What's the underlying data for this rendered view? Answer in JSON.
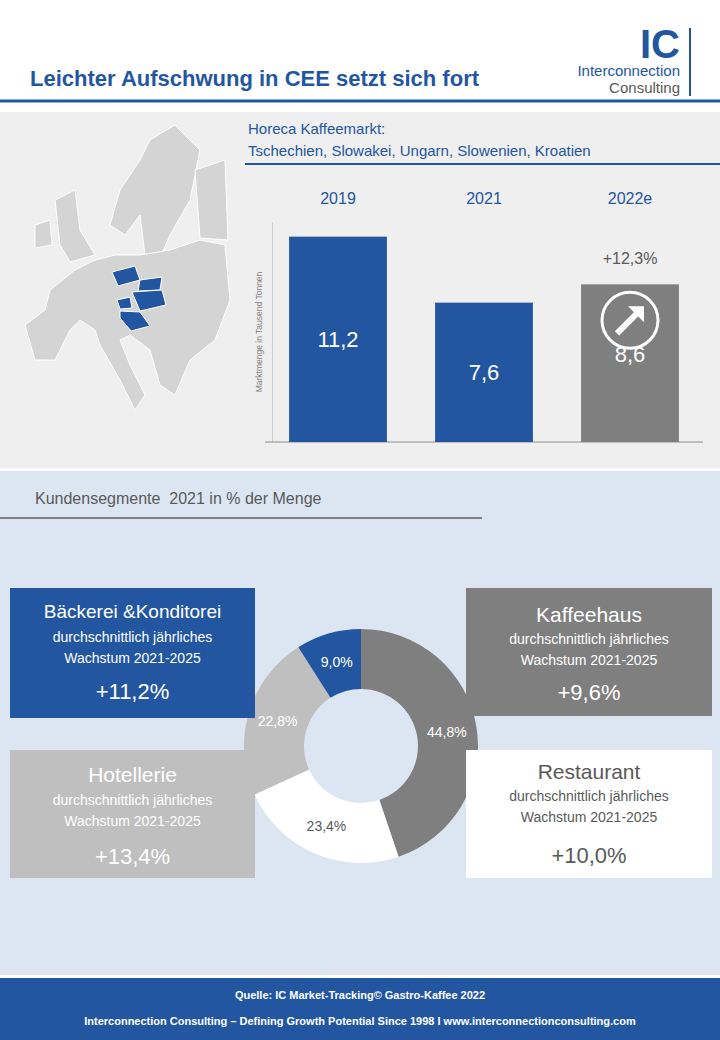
{
  "header": {
    "title": "Leichter Aufschwung in CEE setzt sich fort",
    "logo": "IC",
    "company": [
      "Interconnection",
      "Consulting"
    ]
  },
  "chart_data": [
    {
      "type": "bar",
      "title": "Horeca Kaffeemarkt:",
      "subtitle": "Tschechien, Slowakei, Ungarn, Slowenien, Kroatien",
      "ylabel": "Marktmenge in Tausend Tonnen",
      "categories": [
        "2019",
        "2021",
        "2022e"
      ],
      "values": [
        11.2,
        7.6,
        8.6
      ],
      "value_labels": [
        "11,2",
        "7,6",
        "8,6"
      ],
      "colors": [
        "#2356a0",
        "#2356a0",
        "#7f7f7f"
      ],
      "ylim": [
        0,
        12
      ],
      "yticks": [
        0
      ],
      "data_labels": true,
      "tick_labels": "x",
      "grid": false,
      "annotations": [
        {
          "category": "2022e",
          "text": "+12,3%"
        }
      ]
    },
    {
      "type": "pie",
      "title": "Kundensegmente  2021 in % der Menge",
      "categories": [
        "Kaffeehaus",
        "Restaurant",
        "Hotellerie",
        "Bäckerei &Konditorei"
      ],
      "values": [
        44.8,
        23.4,
        22.8,
        9.0
      ],
      "value_labels": [
        "44,8%",
        "23,4%",
        "22,8%",
        "9,0%"
      ],
      "colors": [
        "#7f7f7f",
        "#ffffff",
        "#bfbfbf",
        "#2356a0"
      ],
      "data_labels": true,
      "growth_label": [
        "durchschnittlich jährliches",
        "Wachstum 2021-2025"
      ],
      "growth": [
        9.6,
        10.0,
        13.4,
        11.2
      ],
      "growth_labels": [
        "+9,6%",
        "+10,0%",
        "+13,4%",
        "+11,2%"
      ]
    }
  ],
  "footer": {
    "source": "Quelle: IC Market-Tracking© Gastro-Kaffee 2022",
    "tagline": "Interconnection Consulting – Defining Growth Potential Since 1998 I www.interconnectionconsulting.com"
  }
}
